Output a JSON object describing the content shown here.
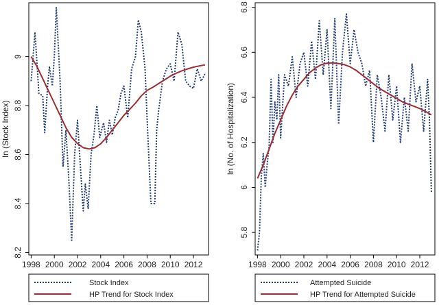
{
  "colors": {
    "index_line": "#1f3b73",
    "trend_line": "#9b2d30"
  },
  "chart_data": [
    {
      "type": "line",
      "ylabel": "ln (Stock Index)",
      "xlim": [
        1997.8,
        2013.3
      ],
      "ylim": [
        8.19,
        9.22
      ],
      "xticks": [
        1998,
        2000,
        2002,
        2004,
        2006,
        2008,
        2010,
        2012
      ],
      "yticks": [
        8.2,
        8.4,
        8.6,
        8.8,
        9
      ],
      "ytick_labels": [
        "8.2",
        "8.4",
        "8.6",
        "8.8",
        "9"
      ],
      "grid": false,
      "legend": "bottom",
      "series": [
        {
          "name": "Stock Index",
          "style": "dotted",
          "x": [
            1998.0,
            1998.33,
            1998.67,
            1999.0,
            1999.17,
            1999.42,
            1999.58,
            1999.83,
            2000.0,
            2000.17,
            2000.5,
            2000.75,
            2001.0,
            2001.25,
            2001.5,
            2001.75,
            2002.0,
            2002.25,
            2002.5,
            2002.67,
            2002.92,
            2003.17,
            2003.42,
            2003.67,
            2003.92,
            2004.25,
            2004.5,
            2004.75,
            2005.0,
            2005.25,
            2005.5,
            2005.75,
            2006.0,
            2006.33,
            2006.67,
            2007.0,
            2007.25,
            2007.5,
            2007.83,
            2008.0,
            2008.33,
            2008.67,
            2008.83,
            2009.0,
            2009.33,
            2009.67,
            2010.0,
            2010.33,
            2010.67,
            2011.0,
            2011.33,
            2011.67,
            2012.0,
            2012.33,
            2012.67,
            2013.0
          ],
          "y": [
            8.9,
            9.1,
            8.85,
            8.84,
            8.69,
            8.88,
            8.96,
            8.88,
            9.0,
            9.2,
            8.9,
            8.55,
            8.7,
            8.5,
            8.25,
            8.6,
            8.74,
            8.55,
            8.37,
            8.48,
            8.38,
            8.6,
            8.68,
            8.8,
            8.67,
            8.73,
            8.65,
            8.74,
            8.68,
            8.75,
            8.78,
            8.85,
            8.88,
            8.75,
            8.95,
            9.0,
            9.15,
            9.1,
            8.95,
            8.75,
            8.4,
            8.4,
            8.7,
            8.78,
            8.9,
            8.95,
            8.97,
            8.9,
            9.1,
            9.05,
            8.9,
            8.88,
            8.87,
            8.95,
            8.9,
            8.93
          ]
        },
        {
          "name": "HP Trend for Stock Index",
          "style": "solid",
          "x": [
            1998.0,
            1998.5,
            1999.0,
            1999.5,
            2000.0,
            2000.5,
            2001.0,
            2001.5,
            2002.0,
            2002.5,
            2003.0,
            2003.5,
            2004.0,
            2004.5,
            2005.0,
            2005.5,
            2006.0,
            2006.5,
            2007.0,
            2007.5,
            2008.0,
            2008.5,
            2009.0,
            2009.5,
            2010.0,
            2010.5,
            2011.0,
            2011.5,
            2012.0,
            2012.5,
            2013.0
          ],
          "y": [
            9.0,
            8.96,
            8.91,
            8.86,
            8.81,
            8.76,
            8.71,
            8.67,
            8.645,
            8.628,
            8.623,
            8.628,
            8.644,
            8.67,
            8.7,
            8.73,
            8.76,
            8.785,
            8.81,
            8.84,
            8.862,
            8.875,
            8.89,
            8.905,
            8.92,
            8.932,
            8.942,
            8.95,
            8.957,
            8.962,
            8.966
          ]
        }
      ]
    },
    {
      "type": "line",
      "ylabel": "ln (No. of Hospitalization)",
      "xlim": [
        1997.8,
        2013.3
      ],
      "ylim": [
        5.7,
        6.82
      ],
      "xticks": [
        1998,
        2000,
        2002,
        2004,
        2006,
        2008,
        2010,
        2012
      ],
      "yticks": [
        5.8,
        6.0,
        6.2,
        6.4,
        6.6,
        6.8
      ],
      "ytick_labels": [
        "5.8",
        "6",
        "6.2",
        "6.4",
        "6.6",
        "6.8"
      ],
      "grid": false,
      "legend": "bottom",
      "series": [
        {
          "name": "Attempted Suicide",
          "style": "dotted",
          "x": [
            1998.0,
            1998.17,
            1998.33,
            1998.5,
            1998.67,
            1998.83,
            1999.0,
            1999.17,
            1999.33,
            1999.5,
            1999.67,
            1999.83,
            2000.0,
            2000.33,
            2000.67,
            2001.0,
            2001.33,
            2001.67,
            2002.0,
            2002.33,
            2002.67,
            2003.0,
            2003.33,
            2003.67,
            2004.0,
            2004.33,
            2004.67,
            2005.0,
            2005.33,
            2005.67,
            2006.0,
            2006.33,
            2006.67,
            2007.0,
            2007.33,
            2007.67,
            2008.0,
            2008.33,
            2008.67,
            2009.0,
            2009.33,
            2009.67,
            2010.0,
            2010.33,
            2010.67,
            2011.0,
            2011.33,
            2011.67,
            2012.0,
            2012.33,
            2012.67,
            2012.83,
            2013.0
          ],
          "y": [
            5.72,
            5.8,
            6.05,
            6.15,
            6.0,
            6.1,
            6.18,
            6.48,
            6.2,
            6.38,
            6.3,
            6.5,
            6.22,
            6.5,
            6.45,
            6.58,
            6.4,
            6.55,
            6.6,
            6.45,
            6.65,
            6.48,
            6.74,
            6.5,
            6.7,
            6.35,
            6.75,
            6.28,
            6.6,
            6.77,
            6.55,
            6.7,
            6.6,
            6.55,
            6.45,
            6.52,
            6.2,
            6.5,
            6.4,
            6.25,
            6.5,
            6.3,
            6.45,
            6.2,
            6.4,
            6.25,
            6.55,
            6.38,
            6.45,
            6.25,
            6.48,
            6.3,
            5.98
          ]
        },
        {
          "name": "HP Trend for Attempted Suicide",
          "style": "solid",
          "x": [
            1998.0,
            1998.5,
            1999.0,
            1999.5,
            2000.0,
            2000.5,
            2001.0,
            2001.5,
            2002.0,
            2002.5,
            2003.0,
            2003.5,
            2004.0,
            2004.5,
            2005.0,
            2005.5,
            2006.0,
            2006.5,
            2007.0,
            2007.5,
            2008.0,
            2008.5,
            2009.0,
            2009.5,
            2010.0,
            2010.5,
            2011.0,
            2011.5,
            2012.0,
            2012.5,
            2013.0
          ],
          "y": [
            6.04,
            6.1,
            6.17,
            6.24,
            6.3,
            6.36,
            6.41,
            6.45,
            6.48,
            6.51,
            6.53,
            6.545,
            6.552,
            6.553,
            6.55,
            6.545,
            6.535,
            6.52,
            6.5,
            6.48,
            6.46,
            6.44,
            6.425,
            6.41,
            6.395,
            6.38,
            6.37,
            6.36,
            6.35,
            6.337,
            6.322
          ]
        }
      ]
    }
  ]
}
